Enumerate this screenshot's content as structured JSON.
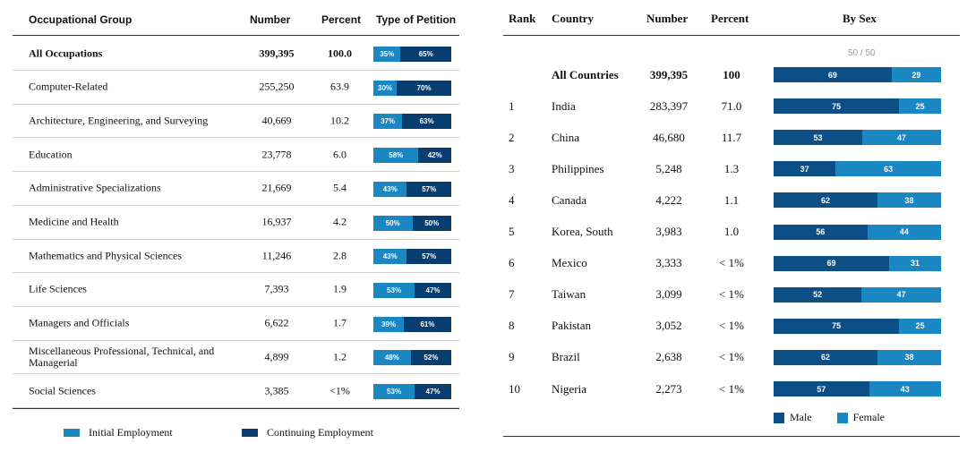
{
  "chart_data": [
    {
      "type": "table",
      "columns": [
        "Occupational Group",
        "Number",
        "Percent",
        "Type of Petition"
      ],
      "rows": [
        {
          "group": "All Occupations",
          "number": "399,395",
          "percent": "100.0",
          "initial": 35,
          "continuing": 65,
          "bold": true
        },
        {
          "group": "Computer-Related",
          "number": "255,250",
          "percent": "63.9",
          "initial": 30,
          "continuing": 70
        },
        {
          "group": "Architecture, Engineering, and Surveying",
          "number": "40,669",
          "percent": "10.2",
          "initial": 37,
          "continuing": 63
        },
        {
          "group": "Education",
          "number": "23,778",
          "percent": "6.0",
          "initial": 58,
          "continuing": 42
        },
        {
          "group": "Administrative Specializations",
          "number": "21,669",
          "percent": "5.4",
          "initial": 43,
          "continuing": 57
        },
        {
          "group": "Medicine and Health",
          "number": "16,937",
          "percent": "4.2",
          "initial": 50,
          "continuing": 50
        },
        {
          "group": "Mathematics and Physical Sciences",
          "number": "11,246",
          "percent": "2.8",
          "initial": 43,
          "continuing": 57
        },
        {
          "group": "Life Sciences",
          "number": "7,393",
          "percent": "1.9",
          "initial": 53,
          "continuing": 47
        },
        {
          "group": "Managers and Officials",
          "number": "6,622",
          "percent": "1.7",
          "initial": 39,
          "continuing": 61
        },
        {
          "group": "Miscellaneous Professional, Technical, and Managerial",
          "number": "4,899",
          "percent": "1.2",
          "initial": 48,
          "continuing": 52
        },
        {
          "group": "Social Sciences",
          "number": "3,385",
          "percent": "<1%",
          "initial": 53,
          "continuing": 47
        }
      ],
      "legend": [
        {
          "name": "Initial Employment",
          "color": "#1a86c2"
        },
        {
          "name": "Continuing Employment",
          "color": "#083d6f"
        }
      ]
    },
    {
      "type": "table",
      "columns": [
        "Rank",
        "Country",
        "Number",
        "Percent",
        "By Sex"
      ],
      "counter": "50 / 50",
      "rows": [
        {
          "rank": "",
          "country": "All Countries",
          "number": "399,395",
          "percent": "100",
          "male": 69,
          "female": 29,
          "bold": true
        },
        {
          "rank": "1",
          "country": "India",
          "number": "283,397",
          "percent": "71.0",
          "male": 75,
          "female": 25
        },
        {
          "rank": "2",
          "country": "China",
          "number": "46,680",
          "percent": "11.7",
          "male": 53,
          "female": 47
        },
        {
          "rank": "3",
          "country": "Philippines",
          "number": "5,248",
          "percent": "1.3",
          "male": 37,
          "female": 63
        },
        {
          "rank": "4",
          "country": "Canada",
          "number": "4,222",
          "percent": "1.1",
          "male": 62,
          "female": 38
        },
        {
          "rank": "5",
          "country": "Korea, South",
          "number": "3,983",
          "percent": "1.0",
          "male": 56,
          "female": 44
        },
        {
          "rank": "6",
          "country": "Mexico",
          "number": "3,333",
          "percent": "< 1%",
          "male": 69,
          "female": 31
        },
        {
          "rank": "7",
          "country": "Taiwan",
          "number": "3,099",
          "percent": "< 1%",
          "male": 52,
          "female": 47
        },
        {
          "rank": "8",
          "country": "Pakistan",
          "number": "3,052",
          "percent": "< 1%",
          "male": 75,
          "female": 25
        },
        {
          "rank": "9",
          "country": "Brazil",
          "number": "2,638",
          "percent": "< 1%",
          "male": 62,
          "female": 38
        },
        {
          "rank": "10",
          "country": "Nigeria",
          "number": "2,273",
          "percent": "< 1%",
          "male": 57,
          "female": 43
        }
      ],
      "legend": [
        {
          "name": "Male",
          "color": "#0b4f86"
        },
        {
          "name": "Female",
          "color": "#1a86c2"
        }
      ]
    }
  ]
}
